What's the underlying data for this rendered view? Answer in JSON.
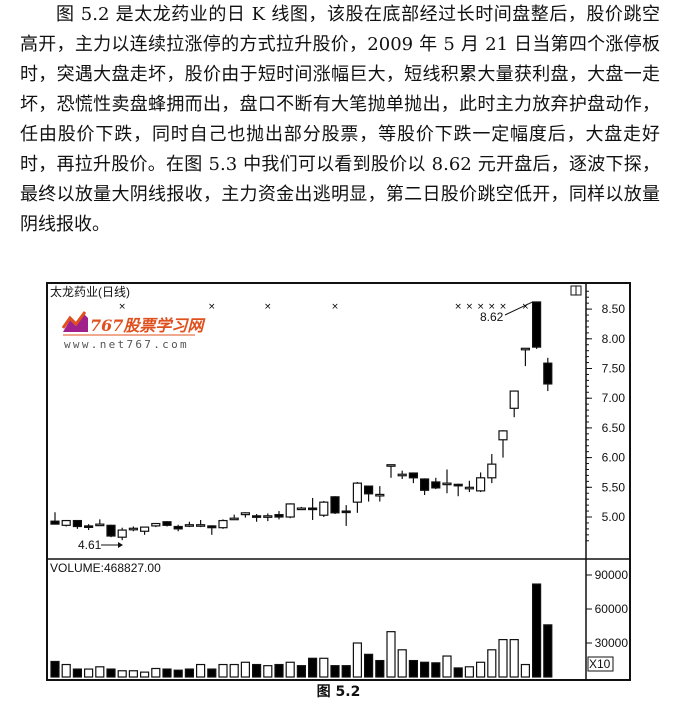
{
  "paragraph": "图 5.2 是太龙药业的日 K 线图，该股在底部经过长时间盘整后，股价跳空高开，主力以连续拉涨停的方式拉升股价，2009 年 5 月 21 日当第四个涨停板时，突遇大盘走坏，股价由于短时间涨幅巨大，短线积累大量获利盘，大盘一走坏，恐慌性卖盘蜂拥而出，盘口不断有大笔抛单抛出，此时主力放弃护盘动作，任由股价下跌，同时自己也抛出部分股票，等股价下跌一定幅度后，大盘走好时，再拉升股价。在图 5.3 中我们可以看到股价以 8.62 元开盘后，逐波下探，最终以放量大阴线报收，主力资金出逃明显，第二日股价跳空低开，同样以放量阴线报收。",
  "caption": "图 5.2",
  "watermark": {
    "logo_text": "767股票学习网",
    "url_text": "www.net767.com"
  },
  "colors": {
    "up": "#ffffff",
    "down": "#000000",
    "logo_orange": "#e0501e",
    "logo_purple": "#a0208c"
  },
  "chart_data": {
    "type": "candlestick",
    "title": "太龙药业(日线)",
    "price_axis": {
      "ticks": [
        "8.50",
        "8.00",
        "7.50",
        "7.00",
        "6.50",
        "6.00",
        "5.50",
        "5.00"
      ],
      "range": [
        4.3,
        8.95
      ]
    },
    "volume_label": "VOLUME:468827.00",
    "volume_axis": {
      "ticks": [
        "90000",
        "60000",
        "30000"
      ],
      "multiplier_label": "X10",
      "range": [
        0,
        100000
      ]
    },
    "annotations": [
      {
        "text": "8.62",
        "candle": 43
      },
      {
        "text": "4.61",
        "candle": 6
      }
    ],
    "marker_candles": [
      6,
      14,
      19,
      25,
      36,
      37,
      38,
      39,
      40,
      42
    ],
    "ohlc": [
      [
        4.93,
        5.08,
        4.88,
        4.88
      ],
      [
        4.86,
        4.95,
        4.84,
        4.94
      ],
      [
        4.94,
        4.95,
        4.8,
        4.84
      ],
      [
        4.85,
        4.88,
        4.78,
        4.84
      ],
      [
        4.87,
        4.96,
        4.85,
        4.88
      ],
      [
        4.86,
        4.87,
        4.66,
        4.68
      ],
      [
        4.66,
        4.82,
        4.61,
        4.78
      ],
      [
        4.8,
        4.84,
        4.76,
        4.81
      ],
      [
        4.76,
        4.84,
        4.7,
        4.83
      ],
      [
        4.85,
        4.9,
        4.83,
        4.89
      ],
      [
        4.92,
        4.93,
        4.84,
        4.86
      ],
      [
        4.84,
        4.87,
        4.76,
        4.8
      ],
      [
        4.86,
        4.92,
        4.83,
        4.87
      ],
      [
        4.87,
        4.95,
        4.83,
        4.87
      ],
      [
        4.85,
        4.86,
        4.7,
        4.82
      ],
      [
        4.82,
        4.96,
        4.8,
        4.94
      ],
      [
        4.98,
        5.04,
        4.95,
        4.98
      ],
      [
        5.04,
        5.08,
        4.99,
        5.07
      ],
      [
        5.02,
        5.05,
        4.92,
        5.0
      ],
      [
        5.02,
        5.06,
        4.93,
        5.02
      ],
      [
        5.04,
        5.1,
        4.96,
        5.0
      ],
      [
        5.0,
        5.23,
        4.98,
        5.22
      ],
      [
        5.15,
        5.17,
        5.13,
        5.15
      ],
      [
        5.15,
        5.32,
        4.95,
        5.14
      ],
      [
        5.03,
        5.27,
        5.0,
        5.25
      ],
      [
        5.34,
        5.35,
        5.05,
        5.07
      ],
      [
        5.1,
        5.2,
        4.85,
        5.09
      ],
      [
        5.25,
        5.59,
        5.07,
        5.57
      ],
      [
        5.52,
        5.53,
        5.26,
        5.39
      ],
      [
        5.37,
        5.52,
        5.26,
        5.38
      ],
      [
        5.88,
        5.88,
        5.66,
        5.88
      ],
      [
        5.72,
        5.78,
        5.64,
        5.72
      ],
      [
        5.74,
        5.75,
        5.57,
        5.66
      ],
      [
        5.64,
        5.65,
        5.37,
        5.45
      ],
      [
        5.59,
        5.66,
        5.47,
        5.49
      ],
      [
        5.57,
        5.8,
        5.4,
        5.57
      ],
      [
        5.55,
        5.56,
        5.35,
        5.53
      ],
      [
        5.5,
        5.61,
        5.42,
        5.5
      ],
      [
        5.44,
        5.75,
        5.42,
        5.66
      ],
      [
        5.66,
        6.06,
        5.57,
        5.89
      ],
      [
        6.3,
        6.46,
        6.0,
        6.45
      ],
      [
        6.83,
        7.13,
        6.68,
        7.12
      ],
      [
        7.84,
        7.84,
        7.54,
        7.84
      ],
      [
        8.62,
        8.62,
        7.83,
        7.86
      ],
      [
        7.59,
        7.68,
        7.12,
        7.24
      ]
    ],
    "volume": [
      13700,
      11000,
      7000,
      7000,
      9000,
      7000,
      5500,
      5500,
      4300,
      7500,
      7000,
      6000,
      7000,
      11000,
      7000,
      11000,
      11000,
      13000,
      11000,
      10000,
      11000,
      13000,
      10000,
      16500,
      16500,
      10000,
      10000,
      30000,
      20000,
      14500,
      40000,
      24000,
      14500,
      13000,
      12500,
      18500,
      8000,
      9000,
      13000,
      24000,
      33000,
      33000,
      11000,
      82000,
      46000
    ],
    "volume_up": [
      false,
      true,
      false,
      true,
      true,
      false,
      true,
      true,
      true,
      true,
      false,
      false,
      false,
      true,
      false,
      true,
      true,
      true,
      false,
      true,
      false,
      true,
      false,
      false,
      true,
      false,
      false,
      true,
      false,
      false,
      true,
      true,
      false,
      false,
      false,
      true,
      false,
      true,
      true,
      true,
      true,
      true,
      true,
      false,
      false
    ]
  }
}
